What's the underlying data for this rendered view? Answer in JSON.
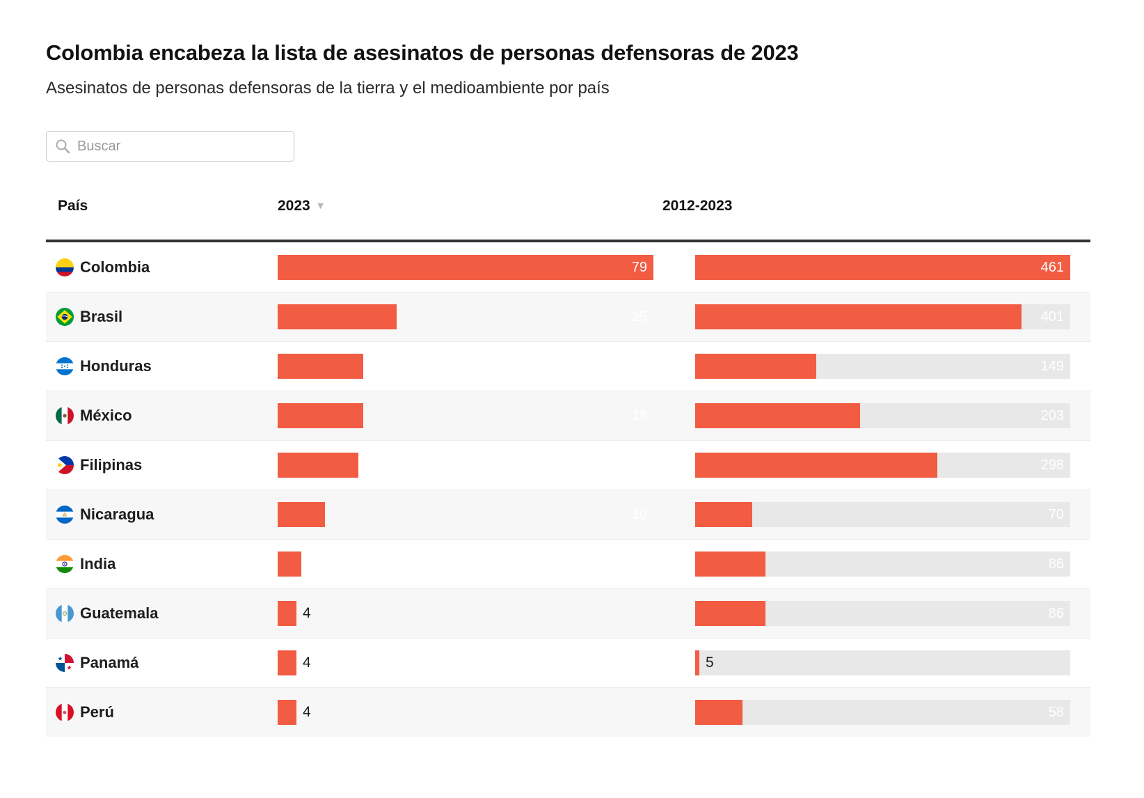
{
  "page": {
    "title": "Colombia encabeza la lista de asesinatos de personas defensoras de 2023",
    "subtitle": "Asesinatos de personas defensoras de la tierra y el medioambiente por país"
  },
  "search": {
    "placeholder": "Buscar",
    "icon": "search-icon",
    "value": ""
  },
  "table": {
    "columns": {
      "country": "País",
      "y2023": "2023",
      "range": "2012-2023"
    },
    "sort": {
      "column": "2023",
      "direction": "desc",
      "indicator": "▼"
    },
    "max_2023": 79,
    "max_range": 461,
    "rows": [
      {
        "country": "Colombia",
        "flag": "colombia",
        "v2023": 79,
        "vrange": 461
      },
      {
        "country": "Brasil",
        "flag": "brasil",
        "v2023": 25,
        "vrange": 401
      },
      {
        "country": "Honduras",
        "flag": "honduras",
        "v2023": 18,
        "vrange": 149
      },
      {
        "country": "México",
        "flag": "mexico",
        "v2023": 18,
        "vrange": 203
      },
      {
        "country": "Filipinas",
        "flag": "filipinas",
        "v2023": 17,
        "vrange": 298
      },
      {
        "country": "Nicaragua",
        "flag": "nicaragua",
        "v2023": 10,
        "vrange": 70
      },
      {
        "country": "India",
        "flag": "india",
        "v2023": 5,
        "vrange": 86
      },
      {
        "country": "Guatemala",
        "flag": "guatemala",
        "v2023": 4,
        "vrange": 86
      },
      {
        "country": "Panamá",
        "flag": "panama",
        "v2023": 4,
        "vrange": 5
      },
      {
        "country": "Perú",
        "flag": "peru",
        "v2023": 4,
        "vrange": 58
      }
    ]
  },
  "colors": {
    "bar": "#F15C42",
    "track": "#E8E8E8",
    "row_alt": "#F7F7F7",
    "header_rule": "#333333",
    "divider": "#EBEBEB"
  },
  "chart_data": {
    "type": "bar",
    "orientation": "horizontal",
    "title": "Colombia encabeza la lista de asesinatos de personas defensoras de 2023",
    "subtitle": "Asesinatos de personas defensoras de la tierra y el medioambiente por país",
    "categories": [
      "Colombia",
      "Brasil",
      "Honduras",
      "México",
      "Filipinas",
      "Nicaragua",
      "India",
      "Guatemala",
      "Panamá",
      "Perú"
    ],
    "series": [
      {
        "name": "2023",
        "values": [
          79,
          25,
          18,
          18,
          17,
          10,
          5,
          4,
          4,
          4
        ],
        "xlim": [
          0,
          79
        ]
      },
      {
        "name": "2012-2023",
        "values": [
          461,
          401,
          149,
          203,
          298,
          70,
          86,
          86,
          5,
          58
        ],
        "xlim": [
          0,
          461
        ]
      }
    ],
    "legend_position": "column-headers",
    "grid": false,
    "sorted_by": "2023 desc"
  }
}
